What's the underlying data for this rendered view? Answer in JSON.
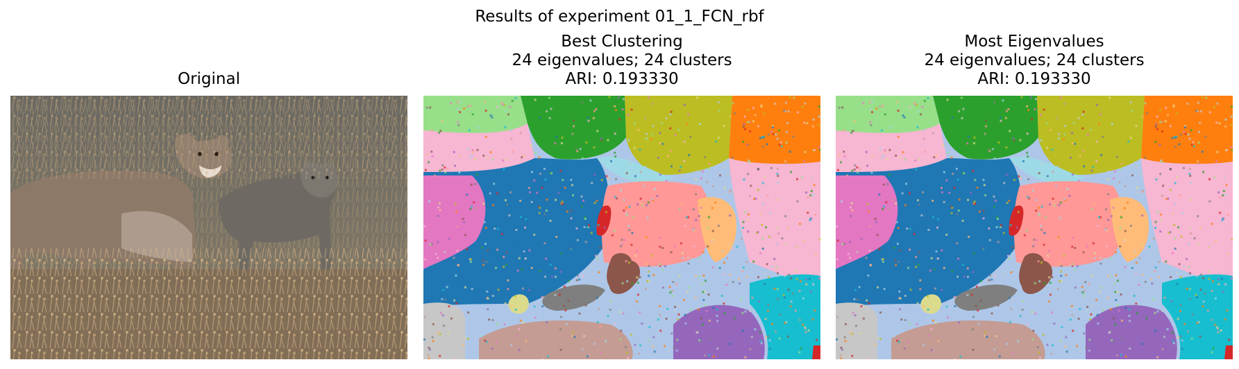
{
  "figure": {
    "suptitle": "Results of experiment 01_1_FCN_rbf"
  },
  "panels": [
    {
      "id": "original",
      "title_lines": [
        "Original"
      ],
      "kind": "photo",
      "photo_subject": "mountain lion with cub in dry grass"
    },
    {
      "id": "best-clustering",
      "title_lines": [
        "Best Clustering",
        "24 eigenvalues; 24 clusters",
        "ARI: 0.193330"
      ],
      "kind": "segmentation",
      "eigenvalues": 24,
      "clusters": 24,
      "ari": 0.19333
    },
    {
      "id": "most-eigenvalues",
      "title_lines": [
        "Most Eigenvalues",
        "24 eigenvalues; 24 clusters",
        "ARI: 0.193330"
      ],
      "kind": "segmentation",
      "eigenvalues": 24,
      "clusters": 24,
      "ari": 0.19333
    }
  ],
  "cluster_colors": {
    "lightgreen": "#98df8a",
    "green": "#2ca02c",
    "olive": "#bcbd22",
    "orange": "#ff7f0e",
    "pink_light": "#f7b6d2",
    "blue": "#1f77b4",
    "lightblue": "#aec7e8",
    "cyan_light": "#9edae5",
    "pink": "#e377c2",
    "red": "#d62728",
    "salmon": "#ff9896",
    "peach": "#ffbb78",
    "brown": "#8c564b",
    "gray": "#7f7f7f",
    "lightgray": "#c7c7c7",
    "khaki": "#dbdb8d",
    "tan": "#c49c94",
    "purple": "#9467bd",
    "cyan": "#17becf"
  }
}
